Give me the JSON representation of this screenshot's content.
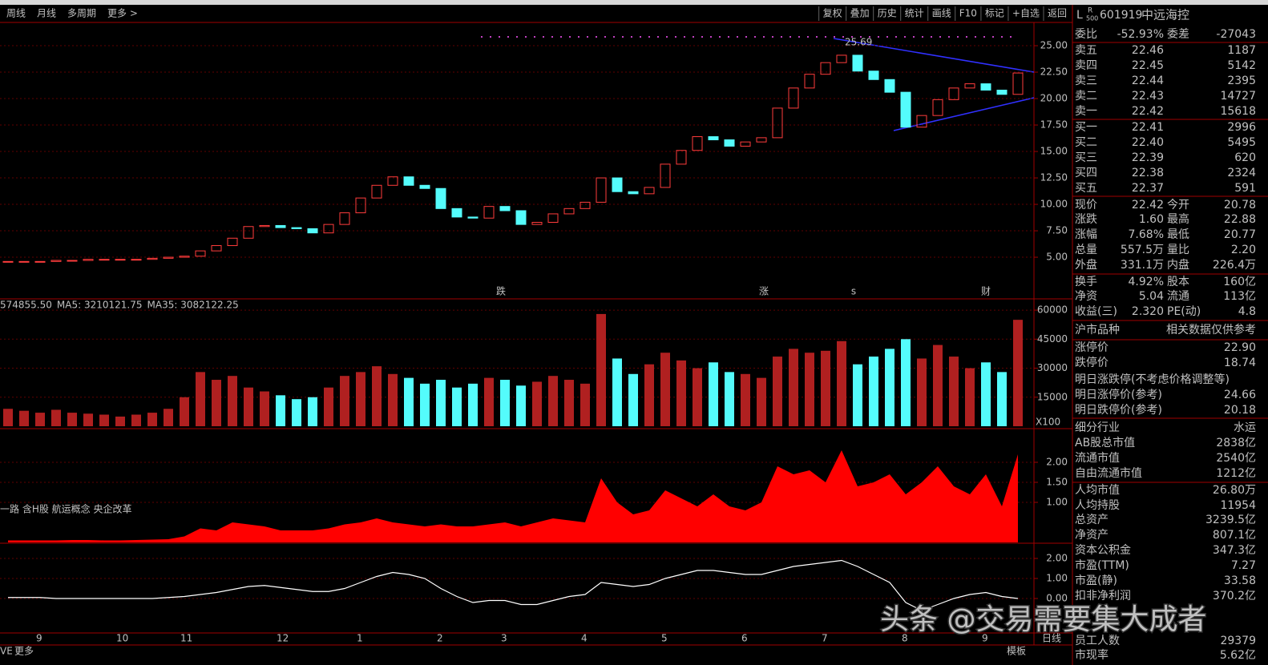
{
  "toolbar": {
    "left": [
      "周线",
      "月线",
      "多周期",
      "更多 >"
    ],
    "right": [
      "复权",
      "叠加",
      "历史",
      "统计",
      "画线",
      "F10",
      "标记",
      "+自选",
      "返回"
    ]
  },
  "chart_data": [
    {
      "type": "candlestick",
      "up_color": "#ff3c3c",
      "down_color": "#54fcfc",
      "categories": [
        null,
        null,
        "9",
        null,
        null,
        null,
        null,
        "10",
        null,
        null,
        null,
        "11",
        null,
        null,
        null,
        null,
        null,
        "12",
        null,
        null,
        null,
        null,
        "1",
        null,
        null,
        null,
        null,
        "2",
        null,
        null,
        null,
        "3",
        null,
        null,
        null,
        null,
        "4",
        null,
        null,
        null,
        null,
        "5",
        null,
        null,
        null,
        null,
        "6",
        null,
        null,
        null,
        null,
        "7",
        null,
        null,
        null,
        null,
        "8",
        null,
        null,
        null,
        null,
        "9",
        null,
        null
      ],
      "values": [
        4.6,
        4.6,
        4.6,
        4.7,
        4.7,
        4.8,
        4.8,
        4.8,
        4.8,
        4.9,
        5.0,
        5.1,
        5.6,
        6.1,
        6.8,
        7.9,
        8.0,
        7.8,
        7.7,
        7.3,
        8.1,
        9.2,
        10.6,
        11.8,
        12.6,
        11.8,
        11.5,
        9.6,
        8.8,
        8.7,
        9.8,
        9.4,
        8.1,
        8.3,
        9.1,
        9.6,
        10.2,
        12.5,
        11.2,
        11.0,
        11.6,
        13.8,
        15.1,
        16.4,
        16.1,
        15.5,
        15.9,
        16.3,
        19.1,
        21.0,
        22.3,
        23.4,
        24.1,
        22.6,
        21.8,
        20.6,
        17.3,
        18.4,
        19.9,
        21.0,
        21.4,
        20.8,
        20.4,
        22.42
      ],
      "ylim": [
        1.14,
        27.2
      ],
      "yticks": [
        {
          "value": 5,
          "label": "5.00"
        },
        {
          "value": 7.5,
          "label": "7.50"
        },
        {
          "value": 10,
          "label": "10.00"
        },
        {
          "value": 12.5,
          "label": "12.50"
        },
        {
          "value": 15,
          "label": "15.00"
        },
        {
          "value": 17.5,
          "label": "17.50"
        },
        {
          "value": 20,
          "label": "20.00"
        },
        {
          "value": 22.5,
          "label": "22.50"
        },
        {
          "value": 25,
          "label": "25.00"
        }
      ],
      "peak_label": "25.69",
      "events": [
        "跌",
        "涨",
        "s",
        "财"
      ],
      "grid": true
    },
    {
      "type": "bar",
      "values": [
        9000,
        8000,
        7000,
        8500,
        7000,
        6500,
        6000,
        5000,
        6000,
        7000,
        9000,
        15000,
        28000,
        24000,
        26000,
        20000,
        18000,
        16000,
        14000,
        15000,
        20000,
        26000,
        28000,
        31000,
        27000,
        25000,
        22000,
        24000,
        20000,
        22000,
        25000,
        24000,
        21000,
        23000,
        26000,
        24000,
        22000,
        58000,
        35000,
        27000,
        32000,
        38000,
        34000,
        30000,
        33000,
        28000,
        27000,
        25000,
        36000,
        40000,
        38000,
        39000,
        44000,
        32000,
        36000,
        40000,
        45000,
        35000,
        42000,
        36000,
        30000,
        33000,
        28000,
        55000
      ],
      "ylim": [
        0,
        65000
      ],
      "yticks": [
        15000,
        30000,
        45000,
        60000
      ],
      "grid": true,
      "legend": [
        {
          "name": "574855.50",
          "color": "#ffffff"
        },
        {
          "name": "MA5: 3210121.75",
          "color": "#ffff00"
        },
        {
          "name": "MA35: 3082122.25",
          "color": "#ff00ff"
        }
      ],
      "unit": "X100"
    },
    {
      "type": "area",
      "color": "#ff0000",
      "values": [
        0.05,
        0.05,
        0.05,
        0.05,
        0.06,
        0.06,
        0.05,
        0.05,
        0.06,
        0.07,
        0.08,
        0.15,
        0.35,
        0.3,
        0.5,
        0.45,
        0.4,
        0.3,
        0.3,
        0.3,
        0.35,
        0.45,
        0.5,
        0.6,
        0.5,
        0.45,
        0.4,
        0.45,
        0.4,
        0.4,
        0.45,
        0.5,
        0.4,
        0.5,
        0.6,
        0.55,
        0.5,
        1.6,
        1.0,
        0.7,
        0.8,
        1.3,
        1.1,
        0.9,
        1.2,
        0.9,
        0.8,
        1.0,
        1.9,
        1.7,
        1.8,
        1.5,
        2.3,
        1.4,
        1.5,
        1.7,
        1.2,
        1.5,
        1.9,
        1.4,
        1.2,
        1.7,
        0.9,
        2.2
      ],
      "ylim": [
        0,
        2.8
      ],
      "yticks": [
        {
          "value": 1,
          "label": "1.00"
        },
        {
          "value": 1.5,
          "label": "1.50"
        },
        {
          "value": 2,
          "label": "2.00"
        }
      ],
      "grid": true,
      "note": "一路 含H股 航运概念 央企改革"
    },
    {
      "type": "line",
      "color": "#ffffff",
      "values": [
        0.05,
        0.05,
        0.05,
        0,
        0,
        0,
        0,
        0,
        0,
        0,
        0.05,
        0.1,
        0.2,
        0.3,
        0.45,
        0.6,
        0.65,
        0.55,
        0.45,
        0.35,
        0.35,
        0.5,
        0.8,
        1.1,
        1.3,
        1.2,
        1.0,
        0.5,
        0.1,
        -0.2,
        -0.1,
        -0.1,
        -0.3,
        -0.3,
        -0.1,
        0.1,
        0.2,
        0.8,
        0.7,
        0.6,
        0.7,
        1.0,
        1.2,
        1.4,
        1.4,
        1.3,
        1.2,
        1.2,
        1.4,
        1.6,
        1.7,
        1.8,
        1.9,
        1.6,
        1.2,
        0.8,
        -0.2,
        -0.6,
        -0.3,
        0.0,
        0.2,
        0.3,
        0.1,
        0.0
      ],
      "ylim": [
        -1.72,
        2.68
      ],
      "yticks": [
        {
          "value": 0,
          "label": "0.00"
        },
        {
          "value": 1,
          "label": "1.00"
        },
        {
          "value": 2,
          "label": "2.00"
        }
      ],
      "grid": true
    }
  ],
  "quote": {
    "flag": "L",
    "flag_top": "R",
    "flag_bottom": "500",
    "code": "601919",
    "name": "中远海控",
    "rows": [
      {
        "label": "委比",
        "value": "-52.93%",
        "color": "#00ff00",
        "label2": "委差",
        "value2": "-27043",
        "color2": "#00ff00"
      },
      {
        "label": "卖五",
        "value": "22.46",
        "color": "#ff3c3c",
        "value2": "1187",
        "color2": "#ffff00"
      },
      {
        "label": "卖四",
        "value": "22.45",
        "color": "#ff3c3c",
        "value2": "5142",
        "color2": "#ffff00"
      },
      {
        "label": "卖三",
        "value": "22.44",
        "color": "#ff3c3c",
        "value2": "2395",
        "color2": "#ffff00"
      },
      {
        "label": "卖二",
        "value": "22.43",
        "color": "#ff3c3c",
        "value2": "14727",
        "color2": "#ffff00"
      },
      {
        "label": "卖一",
        "value": "22.42",
        "color": "#ff3c3c",
        "value2": "15618",
        "color2": "#ffff00"
      },
      {
        "label": "买一",
        "value": "22.41",
        "color": "#ff3c3c",
        "value2": "2996",
        "color2": "#ffff00"
      },
      {
        "label": "买二",
        "value": "22.40",
        "color": "#ff3c3c",
        "value2": "5495",
        "color2": "#ffff00"
      },
      {
        "label": "买三",
        "value": "22.39",
        "color": "#ff3c3c",
        "value2": "620",
        "color2": "#ffff00"
      },
      {
        "label": "买四",
        "value": "22.38",
        "color": "#ff3c3c",
        "value2": "2324",
        "color2": "#ffff00"
      },
      {
        "label": "买五",
        "value": "22.37",
        "color": "#ff3c3c",
        "value2": "591",
        "color2": "#ffff00"
      },
      {
        "label": "现价",
        "value": "22.42",
        "color": "#ff3c3c",
        "label2": "今开",
        "value2": "20.78",
        "color2": "#00ff00"
      },
      {
        "label": "涨跌",
        "value": "1.60",
        "color": "#ff3c3c",
        "label2": "最高",
        "value2": "22.88",
        "color2": "#ff3c3c"
      },
      {
        "label": "涨幅",
        "value": "7.68%",
        "color": "#ff3c3c",
        "label2": "最低",
        "value2": "20.77",
        "color2": "#00ff00"
      },
      {
        "label": "总量",
        "value": "557.5万",
        "color": "#ffff00",
        "label2": "量比",
        "value2": "2.20",
        "color2": "#ff3c3c"
      },
      {
        "label": "外盘",
        "value": "331.1万",
        "color": "#ff3c3c",
        "label2": "内盘",
        "value2": "226.4万",
        "color2": "#00ff00"
      },
      {
        "label": "换手",
        "value": "4.92%",
        "color": "#ffffff",
        "label2": "股本",
        "value2": "160亿",
        "color2": "#ffffff"
      },
      {
        "label": "净资",
        "value": "5.04",
        "color": "#ffffff",
        "label2": "流通",
        "value2": "113亿",
        "color2": "#ffffff"
      },
      {
        "label": "收益(三)",
        "value": "2.320",
        "color": "#ffffff",
        "label2": "PE(动)",
        "value2": "4.8",
        "color2": "#ffffff"
      },
      {
        "label": "沪市品种",
        "value2": "相关数据仅供参考",
        "color2": "#c0c0c0"
      },
      {
        "label": "涨停价",
        "value2": "22.90",
        "color2": "#ff3c3c"
      },
      {
        "label": "跌停价",
        "value2": "18.74",
        "color2": "#00ff00"
      },
      {
        "label": "明日涨跌停(不考虑价格调整等)"
      },
      {
        "label": "明日涨停价(参考)",
        "value2": "24.66",
        "color2": "#ff3c3c"
      },
      {
        "label": "明日跌停价(参考)",
        "value2": "20.18",
        "color2": "#00ff00"
      },
      {
        "label": "细分行业",
        "value2": "水运",
        "color2": "#ffff00"
      },
      {
        "label": "AB股总市值",
        "value2": "2838亿",
        "color2": "#ffffff"
      },
      {
        "label": "流通市值",
        "value2": "2540亿",
        "color2": "#ffffff"
      },
      {
        "label": "自由流通市值",
        "value2": "1212亿",
        "color2": "#ffffff"
      },
      {
        "label": "人均市值",
        "value2": "26.80万",
        "color2": "#ffffff"
      },
      {
        "label": "人均持股",
        "value2": "11954",
        "color2": "#ffffff"
      },
      {
        "label": "总资产",
        "value2": "3239.5亿",
        "color2": "#ffffff"
      },
      {
        "label": "净资产",
        "value2": "807.1亿",
        "color2": "#ffffff"
      },
      {
        "label": "资本公积金",
        "value2": "347.3亿",
        "color2": "#ffffff"
      },
      {
        "label": "市盈(TTM)",
        "value2": "7.27",
        "color2": "#ffffff"
      },
      {
        "label": "市盈(静)",
        "value2": "33.58",
        "color2": "#ffffff"
      },
      {
        "label": "扣非净利润",
        "value2": "370.2亿",
        "color2": "#ffffff"
      },
      {
        "label": "员工人数",
        "value2": "29379",
        "color2": "#ffffff"
      },
      {
        "label": "市现率",
        "value2": "5.62亿",
        "color2": "#ffffff"
      }
    ]
  },
  "footer": {
    "left": [
      "VE",
      "更多"
    ],
    "right": [
      "模板",
      "日线"
    ]
  },
  "watermark": "头条 @交易需要集大成者"
}
